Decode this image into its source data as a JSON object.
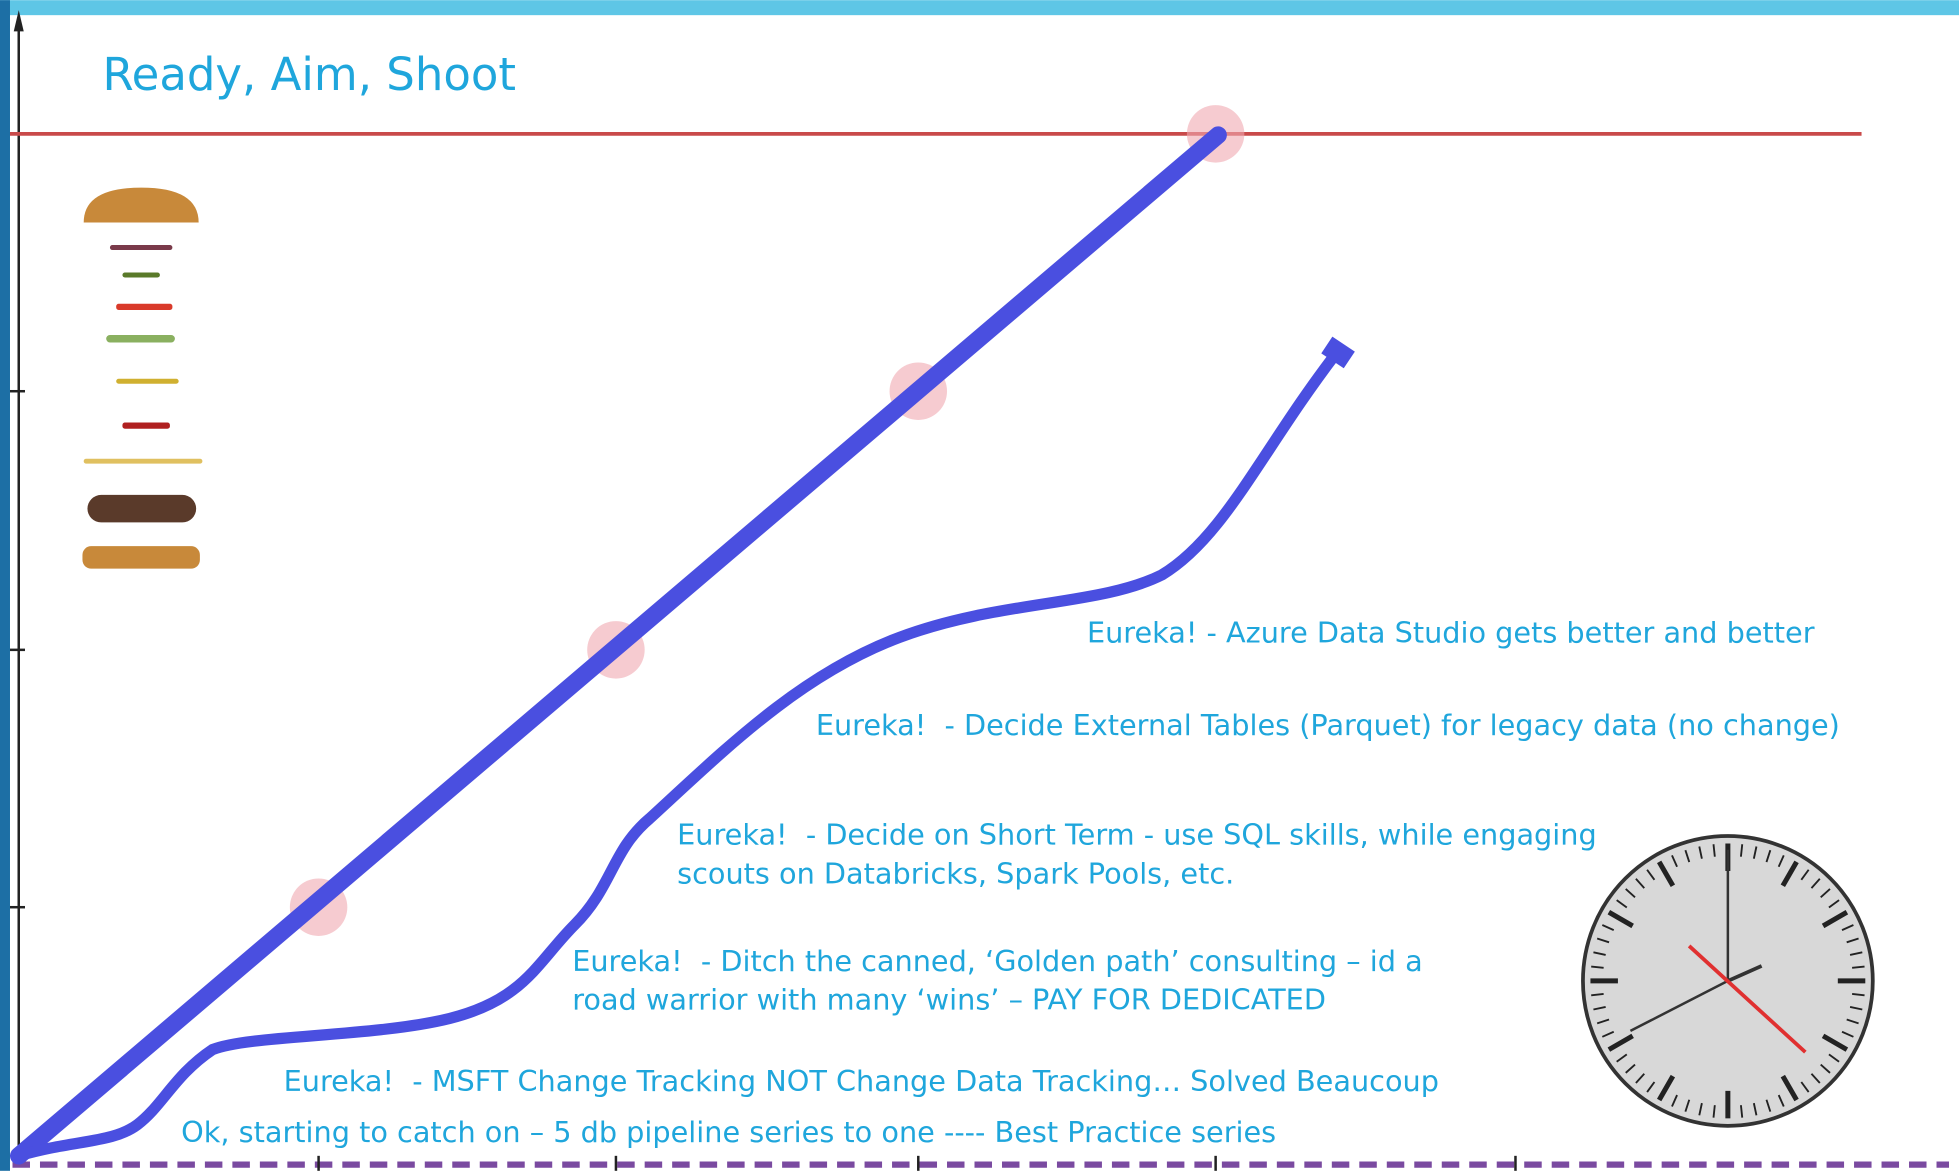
{
  "title": "Ready, Aim, Shoot",
  "annotations": [
    {
      "lines": [
        "Eureka! - Azure Data Studio gets better and better"
      ]
    },
    {
      "lines": [
        "Eureka!  - Decide External Tables (Parquet) for legacy data (no change)"
      ]
    },
    {
      "lines": [
        "Eureka!  - Decide on Short Term - use SQL skills, while engaging",
        "scouts on Databricks, Spark Pools, etc."
      ]
    },
    {
      "lines": [
        "Eureka!  - Ditch the canned, ‘Golden path’ consulting – id a",
        "road warrior with many ‘wins’ – PAY FOR DEDICATED"
      ]
    },
    {
      "lines": [
        "Eureka!  - MSFT Change Tracking NOT Change Data Tracking… Solved Beaucoup"
      ]
    },
    {
      "lines": [
        "Ok, starting to catch on – 5 db pipeline series to one ---- Best Practice series"
      ]
    }
  ]
}
